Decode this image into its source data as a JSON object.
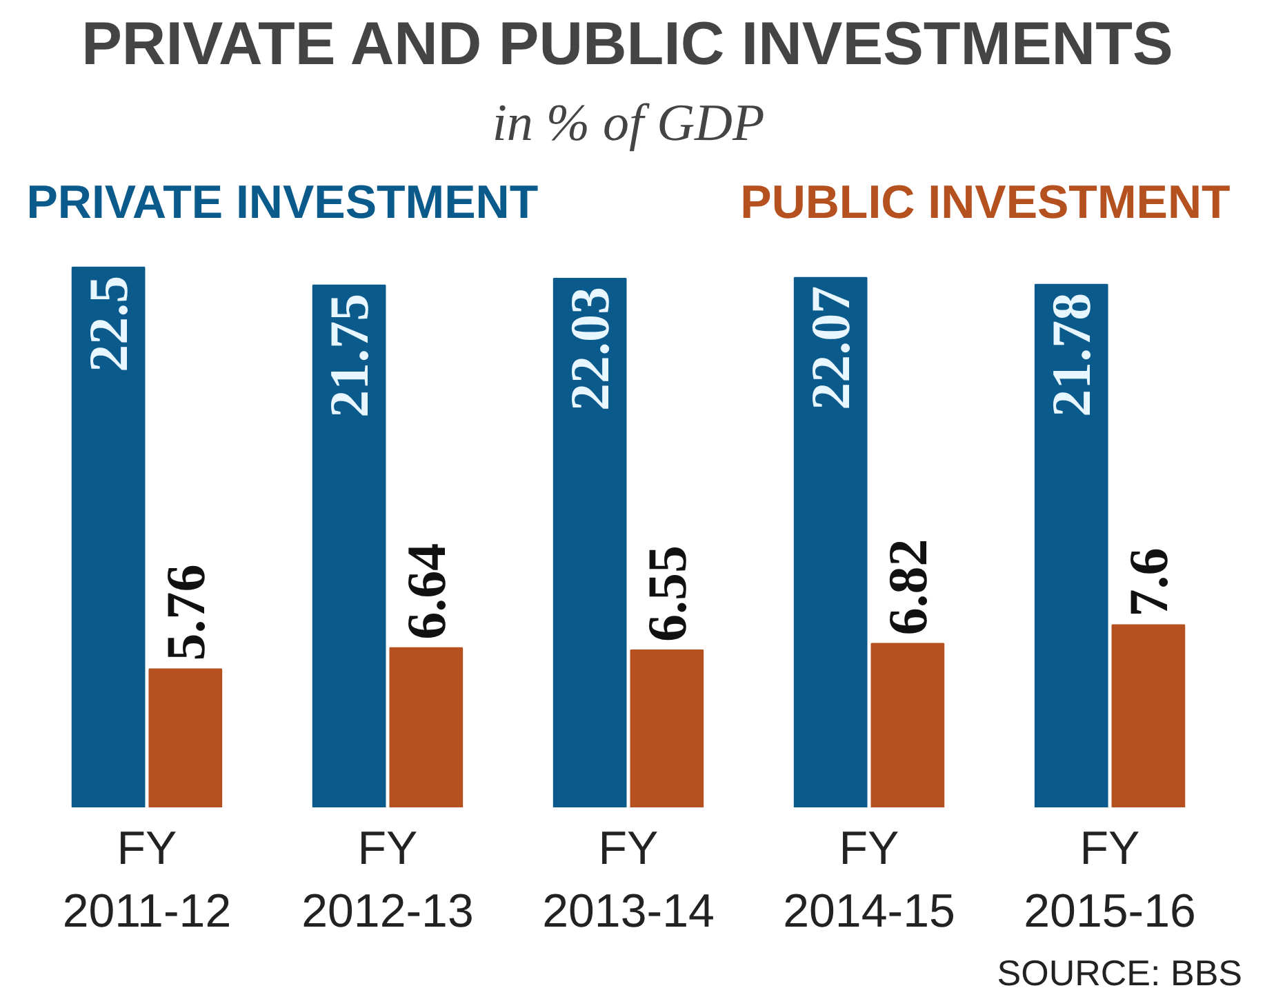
{
  "chart_data": {
    "type": "bar",
    "title": "PRIVATE AND PUBLIC INVESTMENTS",
    "subtitle": "in % of GDP",
    "categories": [
      "FY 2011-12",
      "FY 2012-13",
      "FY 2013-14",
      "FY 2014-15",
      "FY 2015-16"
    ],
    "series": [
      {
        "name": "PRIVATE INVESTMENT",
        "color": "#0a5a8c",
        "values": [
          22.5,
          21.75,
          22.03,
          22.07,
          21.78
        ]
      },
      {
        "name": "PUBLIC INVESTMENT",
        "color": "#b5501f",
        "values": [
          5.76,
          6.64,
          6.55,
          6.82,
          7.6
        ]
      }
    ],
    "data_labels": true,
    "legend": "top",
    "grid": false,
    "annotations": [
      "SOURCE: BBS"
    ]
  }
}
